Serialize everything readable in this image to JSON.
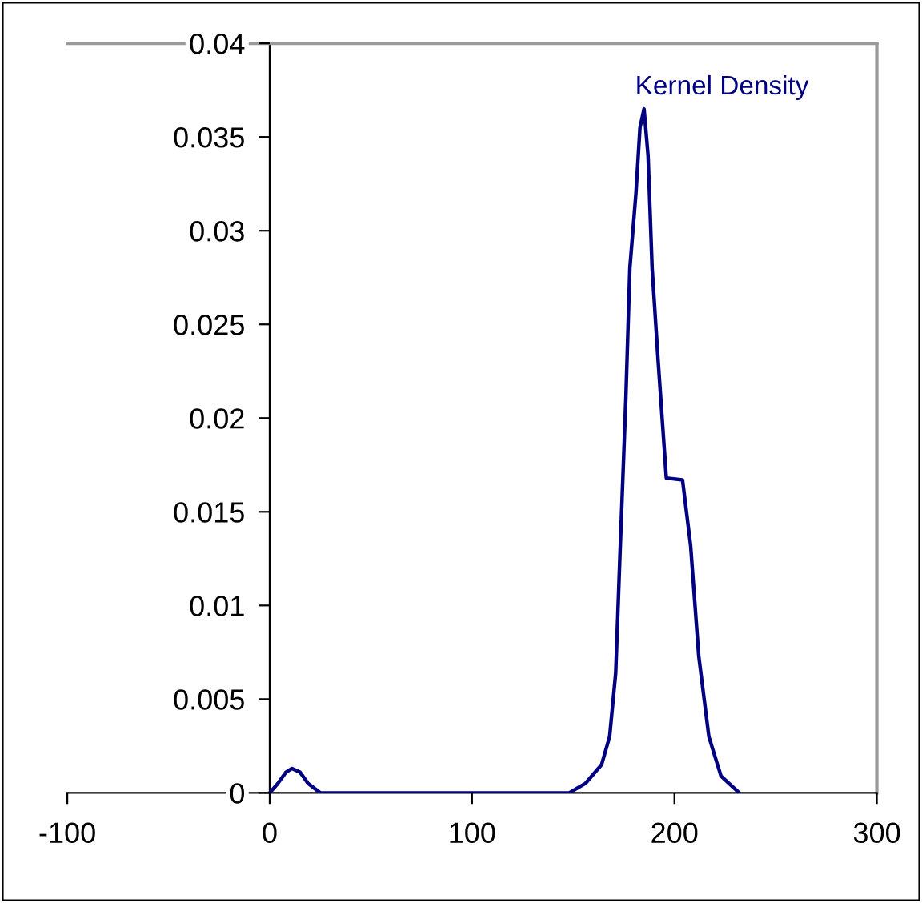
{
  "chart_data": {
    "type": "line",
    "series": [
      {
        "name": "Kernel Density",
        "color": "#000080",
        "x": [
          0,
          4,
          8,
          11,
          15,
          19,
          25,
          60,
          100,
          148,
          156,
          164,
          168,
          171,
          173,
          176,
          178,
          181,
          183,
          185,
          187,
          189,
          192,
          196,
          204,
          208,
          212,
          217,
          223,
          232
        ],
        "values": [
          0,
          0.0005,
          0.0011,
          0.0013,
          0.0011,
          0.0005,
          0,
          0,
          0,
          0,
          0.0005,
          0.0015,
          0.003,
          0.0064,
          0.0124,
          0.021,
          0.028,
          0.032,
          0.0355,
          0.0365,
          0.034,
          0.028,
          0.023,
          0.0168,
          0.0167,
          0.0132,
          0.0073,
          0.003,
          0.0009,
          0
        ]
      }
    ],
    "xlim": [
      -100,
      300
    ],
    "xticks": [
      -100,
      0,
      100,
      200,
      300
    ],
    "ylim": [
      0,
      0.04
    ],
    "yticks": [
      0,
      0.005,
      0.01,
      0.015,
      0.02,
      0.025,
      0.03,
      0.035,
      0.04
    ],
    "grid": false,
    "legend": false,
    "marker": "none",
    "line_style": "solid"
  }
}
